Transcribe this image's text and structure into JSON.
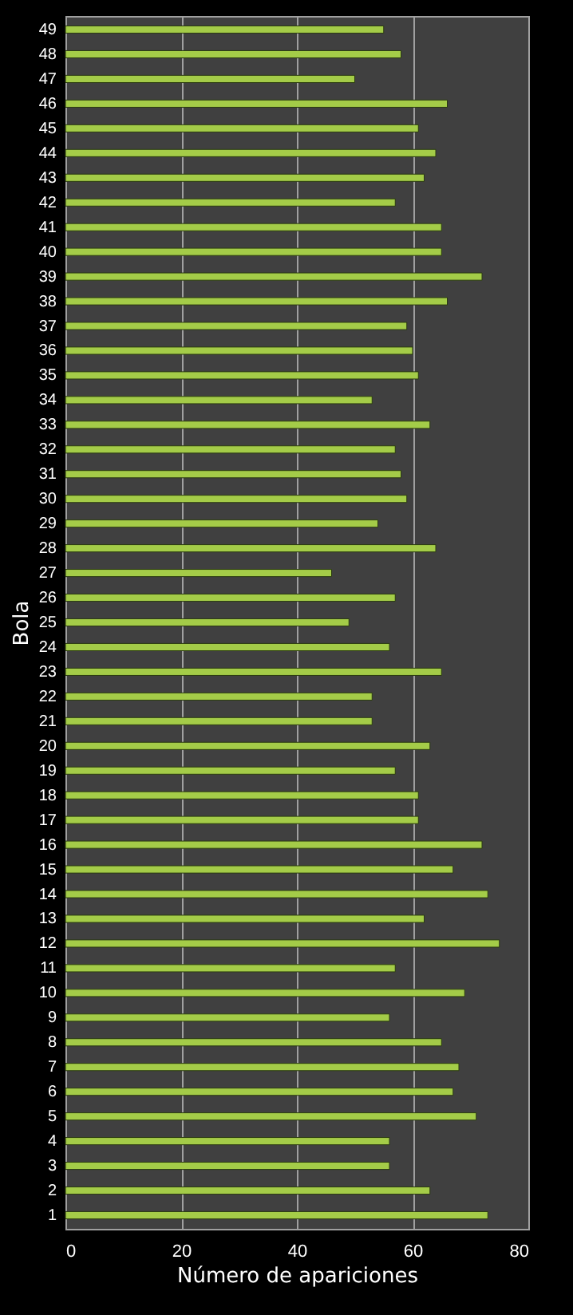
{
  "chart_data": {
    "type": "bar",
    "orientation": "horizontal",
    "xlabel": "Número de apariciones",
    "ylabel": "Bola",
    "categories": [
      "49",
      "48",
      "47",
      "46",
      "45",
      "44",
      "43",
      "42",
      "41",
      "40",
      "39",
      "38",
      "37",
      "36",
      "35",
      "34",
      "33",
      "32",
      "31",
      "30",
      "29",
      "28",
      "27",
      "26",
      "25",
      "24",
      "23",
      "22",
      "21",
      "20",
      "19",
      "18",
      "17",
      "16",
      "15",
      "14",
      "13",
      "12",
      "11",
      "10",
      "9",
      "8",
      "7",
      "6",
      "5",
      "4",
      "3",
      "2",
      "1"
    ],
    "values": [
      55,
      58,
      50,
      66,
      61,
      64,
      62,
      57,
      65,
      65,
      72,
      66,
      59,
      60,
      61,
      53,
      63,
      57,
      58,
      59,
      54,
      64,
      46,
      57,
      49,
      56,
      65,
      53,
      53,
      63,
      57,
      61,
      61,
      72,
      67,
      73,
      62,
      75,
      57,
      69,
      56,
      65,
      68,
      67,
      71,
      56,
      56,
      63,
      73
    ],
    "color": "#a4cc48",
    "xlim": [
      0,
      80
    ],
    "xticks": [
      0,
      20,
      40,
      60,
      80
    ],
    "grid": "x"
  }
}
